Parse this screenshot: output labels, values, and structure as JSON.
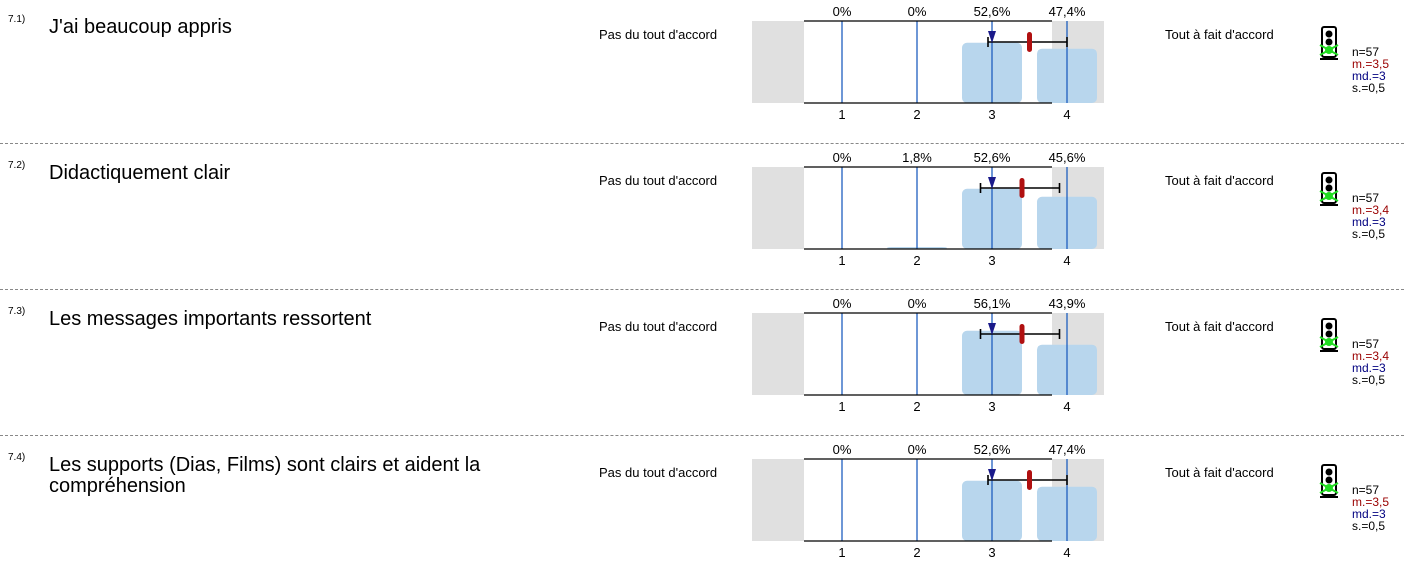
{
  "scale": {
    "left_label": "Pas du tout d'accord",
    "right_label": "Tout à fait d'accord",
    "ticks": [
      "1",
      "2",
      "3",
      "4"
    ]
  },
  "colors": {
    "bar": "#b8d6ed",
    "gridline": "#1f5fbf",
    "side_panel": "#e0e0e0",
    "mean_marker": "#b01010",
    "median_marker": "#1a1a8a",
    "mean_text": "#9a0000",
    "median_text": "#000080"
  },
  "chart_data": [
    {
      "type": "bar",
      "question_number": "7.1)",
      "title": "J'ai beaucoup appris",
      "categories": [
        "1",
        "2",
        "3",
        "4"
      ],
      "values": [
        0,
        0,
        52.6,
        47.4
      ],
      "value_labels": [
        "0%",
        "0%",
        "52,6%",
        "47,4%"
      ],
      "mean": 3.5,
      "median": 3,
      "sd": 0.5,
      "n": 57,
      "stats": {
        "n": "n=57",
        "m": "m.=3,5",
        "md": "md.=3",
        "s": "s.=0,5"
      }
    },
    {
      "type": "bar",
      "question_number": "7.2)",
      "title": "Didactiquement clair",
      "categories": [
        "1",
        "2",
        "3",
        "4"
      ],
      "values": [
        0,
        1.8,
        52.6,
        45.6
      ],
      "value_labels": [
        "0%",
        "1,8%",
        "52,6%",
        "45,6%"
      ],
      "mean": 3.4,
      "median": 3,
      "sd": 0.5,
      "n": 57,
      "stats": {
        "n": "n=57",
        "m": "m.=3,4",
        "md": "md.=3",
        "s": "s.=0,5"
      }
    },
    {
      "type": "bar",
      "question_number": "7.3)",
      "title": "Les messages importants ressortent",
      "categories": [
        "1",
        "2",
        "3",
        "4"
      ],
      "values": [
        0,
        0,
        56.1,
        43.9
      ],
      "value_labels": [
        "0%",
        "0%",
        "56,1%",
        "43,9%"
      ],
      "mean": 3.4,
      "median": 3,
      "sd": 0.5,
      "n": 57,
      "stats": {
        "n": "n=57",
        "m": "m.=3,4",
        "md": "md.=3",
        "s": "s.=0,5"
      }
    },
    {
      "type": "bar",
      "question_number": "7.4)",
      "title": "Les supports (Dias, Films) sont clairs et aident la compréhension",
      "categories": [
        "1",
        "2",
        "3",
        "4"
      ],
      "values": [
        0,
        0,
        52.6,
        47.4
      ],
      "value_labels": [
        "0%",
        "0%",
        "52,6%",
        "47,4%"
      ],
      "mean": 3.5,
      "median": 3,
      "sd": 0.5,
      "n": 57,
      "stats": {
        "n": "n=57",
        "m": "m.=3,5",
        "md": "md.=3",
        "s": "s.=0,5"
      }
    }
  ]
}
